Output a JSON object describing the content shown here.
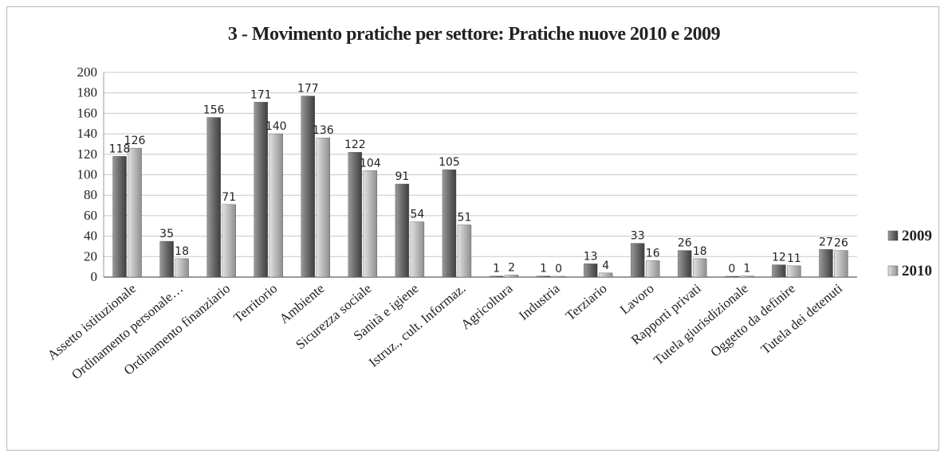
{
  "chart_data": {
    "type": "bar",
    "title": "3 - Movimento pratiche per settore: Pratiche nuove 2010 e 2009",
    "xlabel": "",
    "ylabel": "",
    "ylim": [
      0,
      200
    ],
    "yticks": [
      "0",
      "20",
      "40",
      "60",
      "80",
      "100",
      "120",
      "140",
      "160",
      "180",
      "200"
    ],
    "grid": true,
    "legend_position": "right",
    "categories": [
      "Assetto istituzionale",
      "Ordinamento personale…",
      "Ordinamento finanziario",
      "Territorio",
      "Ambiente",
      "Sicurezza sociale",
      "Sanità e igiene",
      "Istruz., cult. Informaz.",
      "Agricoltura",
      "Industria",
      "Terziario",
      "Lavoro",
      "Rapporti privati",
      "Tutela giurisdizionale",
      "Oggetto da definire",
      "Tutela dei detenuti"
    ],
    "series": [
      {
        "name": "2009",
        "color": "#6b6b6b",
        "values": [
          118,
          35,
          156,
          171,
          177,
          122,
          91,
          105,
          1,
          1,
          13,
          33,
          26,
          0,
          12,
          27
        ]
      },
      {
        "name": "2010",
        "color": "#bdbdbd",
        "values": [
          126,
          18,
          71,
          140,
          136,
          104,
          54,
          51,
          2,
          0,
          4,
          16,
          18,
          1,
          11,
          26
        ]
      }
    ]
  }
}
